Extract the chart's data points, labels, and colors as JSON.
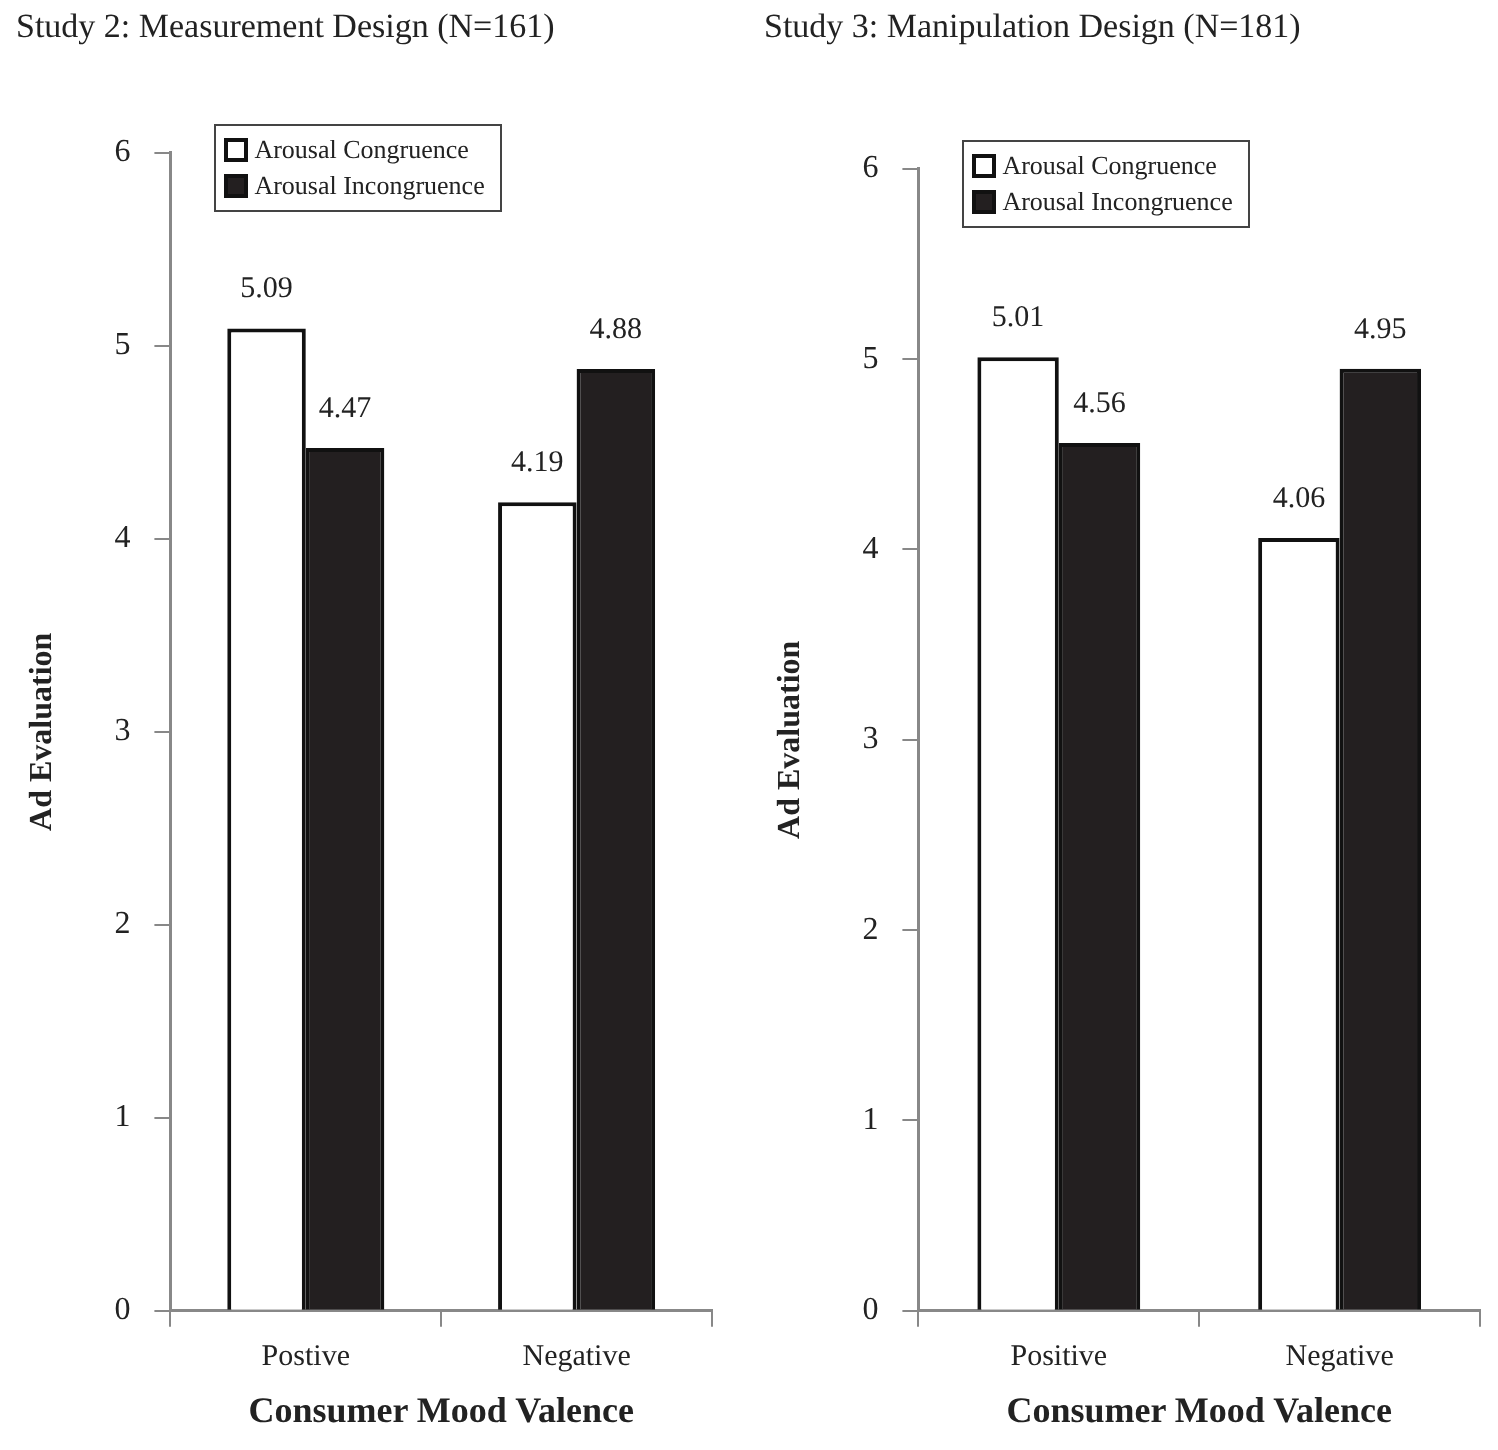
{
  "chart_data": [
    {
      "type": "bar",
      "title": "Study 2: Measurement Design (N=161)",
      "xlabel": "Consumer Mood Valence",
      "ylabel": "Ad Evaluation",
      "categories": [
        "Postive",
        "Negative"
      ],
      "series": [
        {
          "name": "Arousal Congruence",
          "color": "#ffffff",
          "values": [
            5.09,
            4.19
          ]
        },
        {
          "name": "Arousal Incongruence",
          "color": "#231f20",
          "values": [
            4.47,
            4.88
          ]
        }
      ],
      "ylim": [
        0,
        6
      ],
      "yticks": [
        0,
        1,
        2,
        3,
        4,
        5,
        6
      ],
      "grid": false,
      "legend": "top left",
      "data_labels": true
    },
    {
      "type": "bar",
      "title": "Study 3: Manipulation Design (N=181)",
      "xlabel": "Consumer Mood Valence",
      "ylabel": "Ad Evaluation",
      "categories": [
        "Positive",
        "Negative"
      ],
      "series": [
        {
          "name": "Arousal Congruence",
          "color": "#ffffff",
          "values": [
            5.01,
            4.06
          ]
        },
        {
          "name": "Arousal Incongruence",
          "color": "#231f20",
          "values": [
            4.56,
            4.95
          ]
        }
      ],
      "ylim": [
        0,
        6
      ],
      "yticks": [
        0,
        1,
        2,
        3,
        4,
        5,
        6
      ],
      "grid": false,
      "legend": "top left",
      "data_labels": true
    }
  ]
}
